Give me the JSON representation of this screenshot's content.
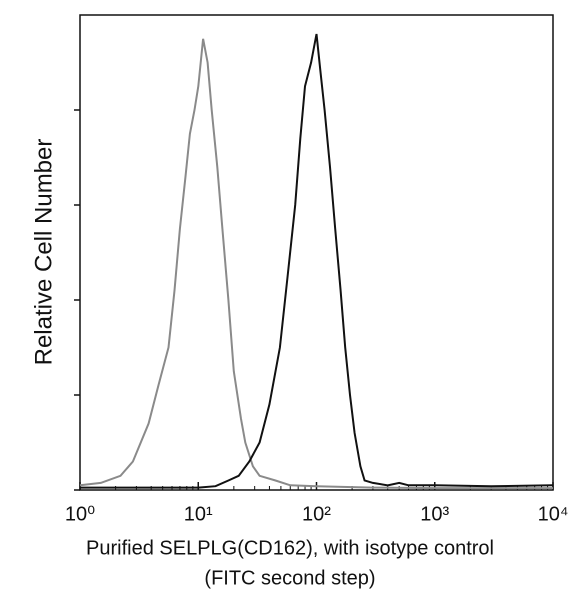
{
  "chart_data": {
    "type": "line",
    "log_x": true,
    "ylabel": "Relative Cell Number",
    "xlabel": [
      "Purified SELPLG(CD162), with isotype control",
      "(FITC second step)"
    ],
    "xlim": [
      1,
      10000
    ],
    "xticks": [
      {
        "value": 1,
        "label": "10⁰"
      },
      {
        "value": 10,
        "label": "10¹"
      },
      {
        "value": 100,
        "label": "10²"
      },
      {
        "value": 1000,
        "label": "10³"
      },
      {
        "value": 10000,
        "label": "10⁴"
      }
    ],
    "ylim": [
      0,
      100
    ],
    "yticks": [
      0,
      20,
      40,
      60,
      80
    ],
    "series": [
      {
        "color": "#8a8a8a",
        "x": [
          1,
          1.5,
          2.2,
          2.8,
          3.8,
          4.6,
          5.6,
          6.3,
          7,
          7.8,
          8.5,
          9.3,
          10,
          11,
          12,
          13,
          14.5,
          16,
          18,
          20,
          23,
          25,
          29,
          33,
          45,
          60,
          100,
          300,
          1000,
          10000
        ],
        "values": [
          1,
          1.5,
          3,
          6,
          14,
          22,
          30,
          42,
          55,
          66,
          75,
          80,
          85,
          95,
          90,
          80,
          68,
          55,
          40,
          25,
          15,
          10,
          5,
          3,
          2,
          1,
          0.8,
          0.5,
          0.4,
          0.4
        ]
      },
      {
        "color": "#111111",
        "x": [
          1,
          5,
          10,
          14,
          18,
          22,
          27,
          33,
          40,
          49,
          57,
          66,
          73,
          80,
          90,
          100,
          108,
          117,
          130,
          144,
          160,
          175,
          192,
          210,
          235,
          255,
          300,
          400,
          500,
          600,
          1000,
          3000,
          10000
        ],
        "values": [
          0.5,
          0.5,
          0.5,
          0.8,
          2,
          3,
          6,
          10,
          18,
          30,
          45,
          60,
          74,
          85,
          90,
          96,
          88,
          80,
          68,
          55,
          42,
          30,
          20,
          12,
          5,
          2,
          1.5,
          1,
          1.5,
          1,
          1,
          0.8,
          1
        ]
      }
    ]
  }
}
